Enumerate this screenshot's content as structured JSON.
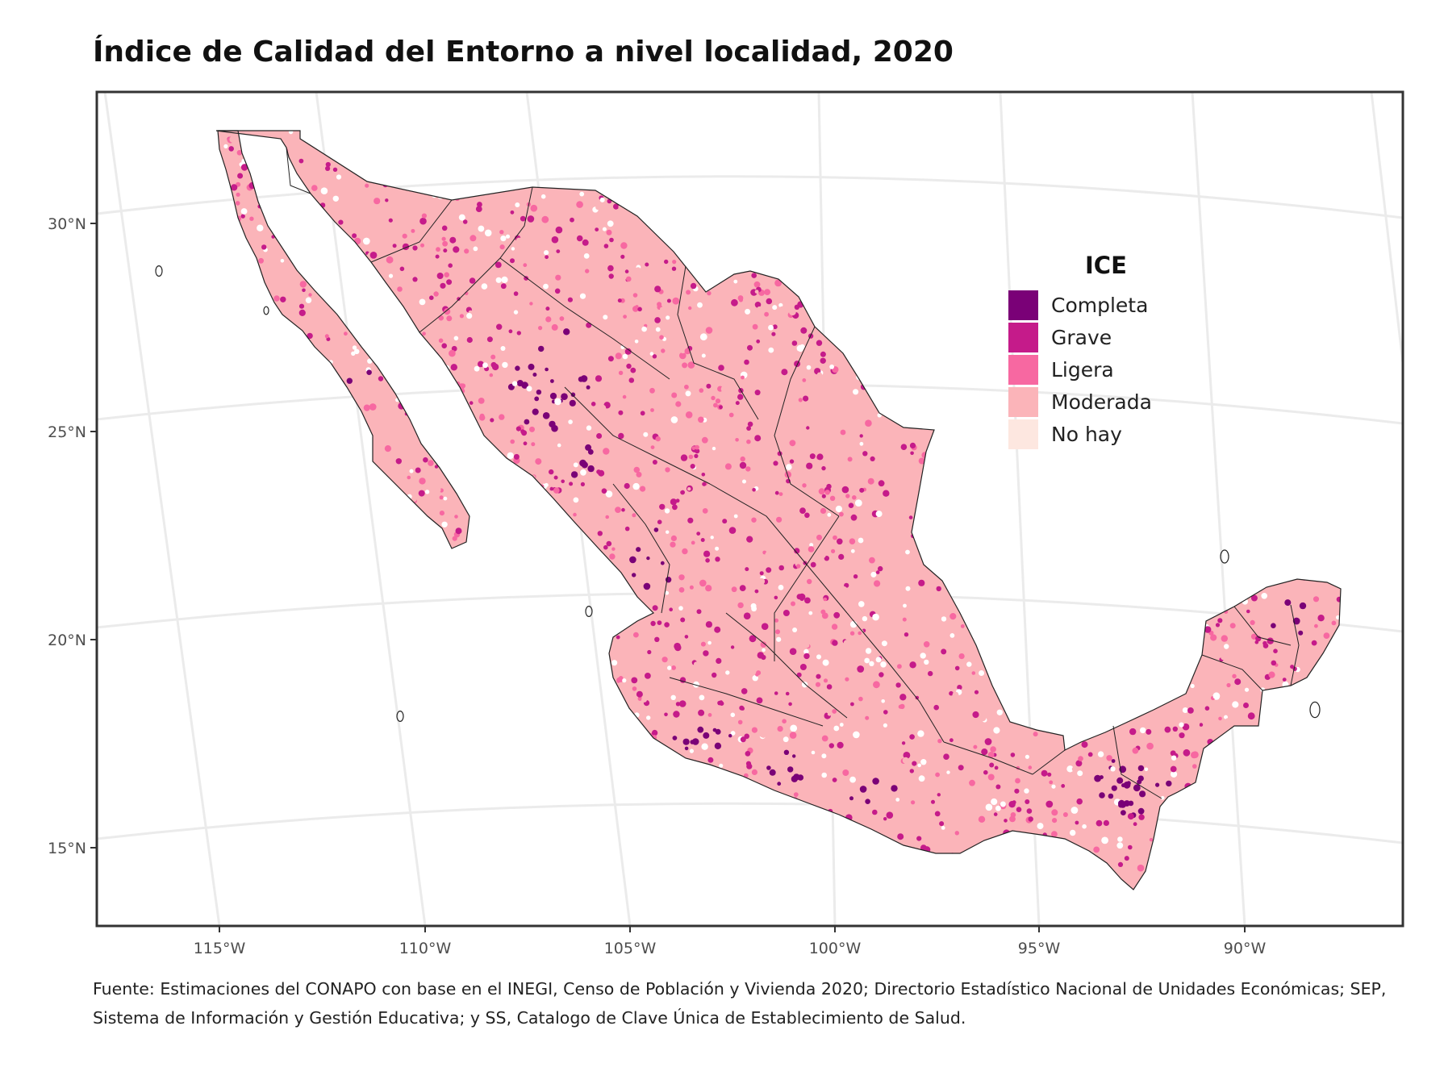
{
  "title": "Índice de Calidad del Entorno a nivel localidad, 2020",
  "legend": {
    "title": "ICE",
    "items": [
      {
        "label": "Completa",
        "color": "#7a0177"
      },
      {
        "label": "Grave",
        "color": "#c51b8a"
      },
      {
        "label": "Ligera",
        "color": "#f768a1"
      },
      {
        "label": "Moderada",
        "color": "#fbb4b9"
      },
      {
        "label": "No hay",
        "color": "#fde7e0"
      }
    ]
  },
  "axes": {
    "lat_labels": [
      "30°N",
      "25°N",
      "20°N",
      "15°N"
    ],
    "lon_labels": [
      "115°W",
      "110°W",
      "105°W",
      "100°W",
      "95°W",
      "90°W"
    ]
  },
  "source": "Fuente: Estimaciones del CONAPO con base en el INEGI, Censo de Población y Vivienda 2020; Directorio Estadístico Nacional de Unidades Económicas; SEP, Sistema de Información y Gestión Educativa; y SS, Catalogo de Clave Única de Establecimiento de Salud."
}
